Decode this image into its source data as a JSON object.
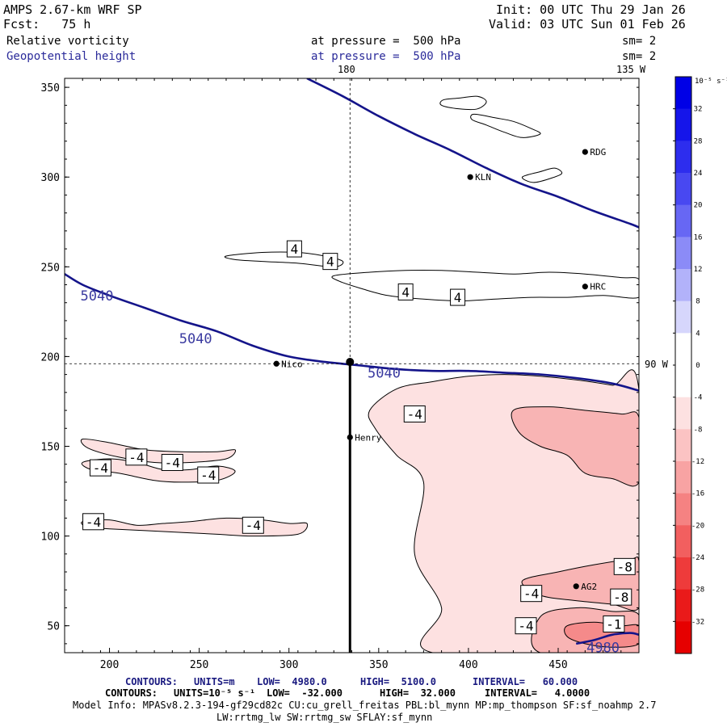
{
  "header": {
    "model_title": "AMPS 2.67-km WRF SP",
    "forecast_label": "Fcst:   75 h",
    "init_time": "Init: 00 UTC Thu 29 Jan 26",
    "valid_time": "Valid: 03 UTC Sun 01 Feb 26",
    "field1": {
      "name": "Relative vorticity",
      "pressure": "at pressure =  500 hPa",
      "smoothing": "sm= 2"
    },
    "field2": {
      "name": "Geopotential height",
      "pressure": "at pressure =  500 hPa",
      "smoothing": "sm= 2"
    }
  },
  "map_labels": {
    "lon_180": "180",
    "lon_135w": "135 W",
    "lat_90w": "90 W"
  },
  "stations": [
    {
      "code": "KLN",
      "x": 401,
      "y": 300
    },
    {
      "code": "RDG",
      "x": 465,
      "y": 314
    },
    {
      "code": "HRC",
      "x": 465,
      "y": 239
    },
    {
      "code": "Nico",
      "x": 293,
      "y": 196
    },
    {
      "code": "Henry",
      "x": 334,
      "y": 155
    },
    {
      "code": "AG2",
      "x": 460,
      "y": 72
    }
  ],
  "chart_data": {
    "type": "contour",
    "xlim": [
      175,
      495
    ],
    "ylim": [
      35,
      355
    ],
    "x_ticks": [
      "200",
      "250",
      "300",
      "350",
      "400",
      "450"
    ],
    "y_ticks": [
      "50",
      "100",
      "150",
      "200",
      "250",
      "300",
      "350"
    ],
    "height_contours": [
      {
        "label": "5040",
        "points": [
          [
            175,
            246
          ],
          [
            185,
            240
          ],
          [
            200,
            234
          ],
          [
            220,
            227
          ],
          [
            240,
            220
          ],
          [
            260,
            214
          ],
          [
            280,
            206
          ],
          [
            300,
            200
          ],
          [
            320,
            197
          ],
          [
            340,
            195
          ],
          [
            360,
            193
          ],
          [
            380,
            192
          ],
          [
            400,
            192
          ],
          [
            420,
            191
          ],
          [
            440,
            190
          ],
          [
            460,
            188
          ],
          [
            480,
            185
          ],
          [
            495,
            181
          ]
        ]
      },
      {
        "label": "",
        "points": [
          [
            310,
            355
          ],
          [
            330,
            345
          ],
          [
            350,
            334
          ],
          [
            370,
            324
          ],
          [
            390,
            315
          ],
          [
            410,
            305
          ],
          [
            430,
            296
          ],
          [
            450,
            289
          ],
          [
            470,
            281
          ],
          [
            490,
            274
          ],
          [
            495,
            272
          ]
        ]
      },
      {
        "label": "4980",
        "points": [
          [
            460,
            40
          ],
          [
            470,
            42
          ],
          [
            480,
            45
          ],
          [
            490,
            46
          ],
          [
            495,
            45
          ]
        ]
      }
    ],
    "height_labels": [
      {
        "text": "5040",
        "x": 193,
        "y": 234
      },
      {
        "text": "5040",
        "x": 248,
        "y": 210
      },
      {
        "text": "5040",
        "x": 353,
        "y": 191
      },
      {
        "text": "4980",
        "x": 475,
        "y": 38
      }
    ],
    "vorticity_labels": [
      {
        "text": "4",
        "x": 303,
        "y": 260
      },
      {
        "text": "4",
        "x": 323,
        "y": 253
      },
      {
        "text": "4",
        "x": 365,
        "y": 236
      },
      {
        "text": "4",
        "x": 394,
        "y": 233
      },
      {
        "text": "-4",
        "x": 370,
        "y": 168
      },
      {
        "text": "-4",
        "x": 195,
        "y": 138
      },
      {
        "text": "-4",
        "x": 215,
        "y": 144
      },
      {
        "text": "-4",
        "x": 235,
        "y": 141
      },
      {
        "text": "-4",
        "x": 255,
        "y": 134
      },
      {
        "text": "-4",
        "x": 191,
        "y": 108
      },
      {
        "text": "-4",
        "x": 280,
        "y": 106
      },
      {
        "text": "-4",
        "x": 435,
        "y": 68
      },
      {
        "text": "-4",
        "x": 432,
        "y": 50
      },
      {
        "text": "-8",
        "x": 487,
        "y": 83
      },
      {
        "text": "-8",
        "x": 485,
        "y": 66
      },
      {
        "text": "-1",
        "x": 481,
        "y": 51
      }
    ],
    "negative_regions": [
      {
        "level": -4,
        "points": [
          [
            345,
            170
          ],
          [
            360,
            182
          ],
          [
            380,
            186
          ],
          [
            400,
            189
          ],
          [
            420,
            190
          ],
          [
            440,
            189
          ],
          [
            460,
            187
          ],
          [
            480,
            184
          ],
          [
            495,
            181
          ],
          [
            495,
            35
          ],
          [
            380,
            35
          ],
          [
            385,
            60
          ],
          [
            370,
            90
          ],
          [
            375,
            130
          ],
          [
            360,
            145
          ],
          [
            348,
            160
          ]
        ]
      },
      {
        "level": -4,
        "points": [
          [
            185,
            154
          ],
          [
            200,
            152
          ],
          [
            220,
            148
          ],
          [
            240,
            147
          ],
          [
            260,
            147
          ],
          [
            270,
            148
          ],
          [
            265,
            143
          ],
          [
            245,
            141
          ],
          [
            225,
            141
          ],
          [
            205,
            144
          ],
          [
            188,
            149
          ]
        ]
      },
      {
        "level": -4,
        "points": [
          [
            185,
            141
          ],
          [
            200,
            143
          ],
          [
            215,
            141
          ],
          [
            230,
            137
          ],
          [
            245,
            137
          ],
          [
            260,
            139
          ],
          [
            270,
            136
          ],
          [
            260,
            131
          ],
          [
            240,
            130
          ],
          [
            225,
            131
          ],
          [
            205,
            135
          ],
          [
            190,
            137
          ]
        ]
      },
      {
        "level": -4,
        "points": [
          [
            185,
            108
          ],
          [
            200,
            109
          ],
          [
            215,
            106
          ],
          [
            230,
            107
          ],
          [
            245,
            108
          ],
          [
            265,
            110
          ],
          [
            285,
            109
          ],
          [
            300,
            107
          ],
          [
            310,
            107
          ],
          [
            305,
            101
          ],
          [
            280,
            100
          ],
          [
            260,
            101
          ],
          [
            240,
            102
          ],
          [
            220,
            103
          ],
          [
            200,
            104
          ],
          [
            188,
            105
          ]
        ]
      },
      {
        "level": -8,
        "points": [
          [
            425,
            170
          ],
          [
            445,
            172
          ],
          [
            465,
            170
          ],
          [
            485,
            168
          ],
          [
            495,
            166
          ],
          [
            495,
            130
          ],
          [
            480,
            132
          ],
          [
            465,
            135
          ],
          [
            455,
            145
          ],
          [
            440,
            150
          ],
          [
            428,
            158
          ]
        ]
      },
      {
        "level": -8,
        "points": [
          [
            430,
            75
          ],
          [
            450,
            80
          ],
          [
            470,
            84
          ],
          [
            490,
            87
          ],
          [
            495,
            86
          ],
          [
            495,
            60
          ],
          [
            480,
            62
          ],
          [
            460,
            64
          ],
          [
            440,
            67
          ]
        ]
      },
      {
        "level": -8,
        "points": [
          [
            440,
            55
          ],
          [
            460,
            60
          ],
          [
            480,
            58
          ],
          [
            495,
            56
          ],
          [
            495,
            35
          ],
          [
            440,
            35
          ]
        ]
      },
      {
        "level": -12,
        "points": [
          [
            455,
            50
          ],
          [
            470,
            52
          ],
          [
            485,
            50
          ],
          [
            495,
            50
          ],
          [
            495,
            40
          ],
          [
            480,
            38
          ],
          [
            465,
            40
          ],
          [
            455,
            44
          ]
        ]
      }
    ],
    "positive_contours": [
      {
        "level": 4,
        "points": [
          [
            265,
            256
          ],
          [
            285,
            258
          ],
          [
            305,
            258
          ],
          [
            320,
            256
          ],
          [
            330,
            253
          ],
          [
            325,
            250
          ],
          [
            305,
            252
          ],
          [
            285,
            253
          ],
          [
            270,
            254
          ]
        ]
      },
      {
        "level": 4,
        "points": [
          [
            325,
            245
          ],
          [
            345,
            247
          ],
          [
            365,
            248
          ],
          [
            385,
            248
          ],
          [
            405,
            247
          ],
          [
            425,
            246
          ],
          [
            445,
            247
          ],
          [
            465,
            246
          ],
          [
            485,
            244
          ],
          [
            495,
            243
          ],
          [
            495,
            233
          ],
          [
            475,
            234
          ],
          [
            455,
            233
          ],
          [
            435,
            233
          ],
          [
            415,
            232
          ],
          [
            395,
            231
          ],
          [
            375,
            232
          ],
          [
            355,
            234
          ],
          [
            340,
            238
          ],
          [
            328,
            242
          ]
        ]
      },
      {
        "level": 4,
        "points": [
          [
            403,
            335
          ],
          [
            415,
            333
          ],
          [
            425,
            331
          ],
          [
            435,
            327
          ],
          [
            440,
            324
          ],
          [
            430,
            322
          ],
          [
            420,
            325
          ],
          [
            410,
            329
          ],
          [
            402,
            332
          ]
        ]
      },
      {
        "level": 4,
        "points": [
          [
            385,
            340
          ],
          [
            395,
            338
          ],
          [
            405,
            338
          ],
          [
            410,
            342
          ],
          [
            405,
            345
          ],
          [
            395,
            344
          ],
          [
            386,
            343
          ]
        ]
      },
      {
        "level": 4,
        "points": [
          [
            430,
            300
          ],
          [
            440,
            303
          ],
          [
            448,
            305
          ],
          [
            452,
            302
          ],
          [
            445,
            299
          ],
          [
            436,
            297
          ]
        ]
      }
    ],
    "cross_section_vertical": {
      "x": 334,
      "y0": 35,
      "y1": 197
    },
    "ref_lines": {
      "lon_180_x": 334,
      "lat_90w_y": 196
    },
    "colorbar": {
      "unit_label": "10⁻⁵ s⁻¹",
      "ticks": [
        "32",
        "28",
        "24",
        "20",
        "16",
        "12",
        "8",
        "4",
        "0",
        "-4",
        "-8",
        "-12",
        "-16",
        "-20",
        "-24",
        "-28",
        "-32"
      ],
      "colors": [
        "#0000e6",
        "#1515ea",
        "#2d2dee",
        "#4848f1",
        "#6767f4",
        "#8b8bf7",
        "#b2b2fa",
        "#d6d6fc",
        "#ffffff",
        "#ffffff",
        "#fde1e1",
        "#fbc3c3",
        "#f8a3a3",
        "#f58282",
        "#f25f5f",
        "#ee3b3b",
        "#ea1a1a",
        "#e60000"
      ]
    }
  },
  "footer": {
    "contours_height": {
      "prefix": "CONTOURS:",
      "units": "UNITS=m",
      "low": "LOW=  4980.0",
      "high": "HIGH=  5100.0",
      "interval": "INTERVAL=   60.000"
    },
    "contours_vort": {
      "prefix": "CONTOURS:",
      "units": "UNITS=10⁻⁵ s⁻¹",
      "low": "LOW=  -32.000",
      "high": "HIGH=  32.000",
      "interval": "INTERVAL=   4.0000"
    },
    "model_info": "Model Info: MPASv8.2.3-194-gf29cd82c CU:cu_grell_freitas PBL:bl_mynn MP:mp_thompson SF:sf_noahmp 2.7",
    "model_info2": "LW:rrtmg_lw SW:rrtmg_sw SFLAY:sf_mynn"
  }
}
